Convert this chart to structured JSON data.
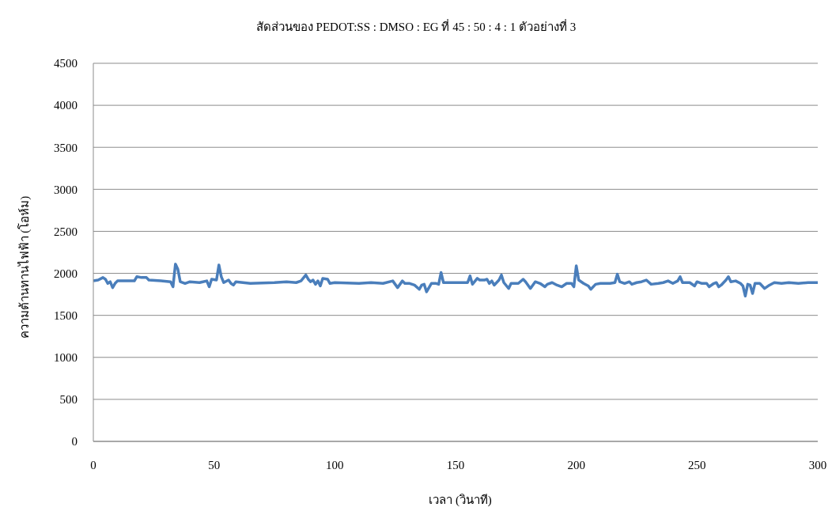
{
  "chart_data": {
    "type": "line",
    "title": "สัดส่วนของ PEDOT:SS : DMSO : EG ที่ 45 : 50 : 4 : 1 ตัวอย่างที่ 3",
    "xlabel": "เวลา (วินาที)",
    "ylabel": "ความต้านทานไฟฟ้า (โอห์ม)",
    "x": [
      0,
      2,
      4,
      5,
      6,
      7,
      8,
      9,
      10,
      14,
      17,
      18,
      20,
      22,
      23,
      28,
      32,
      33,
      34,
      35,
      36,
      38,
      40,
      44,
      47,
      48,
      49,
      51,
      52,
      53,
      54,
      56,
      57,
      58,
      59,
      65,
      75,
      80,
      84,
      86,
      88,
      89,
      90,
      91,
      92,
      93,
      94,
      95,
      97,
      98,
      100,
      110,
      115,
      120,
      124,
      126,
      128,
      129,
      131,
      133,
      135,
      136,
      137,
      138,
      140,
      142,
      143,
      144,
      145,
      150,
      155,
      156,
      157,
      159,
      160,
      162,
      163,
      164,
      165,
      166,
      168,
      169,
      170,
      172,
      173,
      176,
      178,
      179,
      181,
      183,
      185,
      187,
      188,
      190,
      192,
      194,
      196,
      198,
      199,
      200,
      201,
      203,
      205,
      206,
      208,
      210,
      214,
      216,
      217,
      218,
      220,
      222,
      223,
      225,
      227,
      229,
      231,
      234,
      236,
      238,
      240,
      242,
      243,
      244,
      247,
      249,
      250,
      252,
      254,
      255,
      257,
      258,
      259,
      260,
      261,
      262,
      263,
      264,
      266,
      268,
      269,
      270,
      271,
      272,
      273,
      274,
      276,
      277,
      278,
      280,
      282,
      285,
      288,
      292,
      296,
      300
    ],
    "series": [
      {
        "color": "#4a7ebb",
        "values": [
          1910,
          1920,
          1950,
          1930,
          1880,
          1900,
          1830,
          1880,
          1910,
          1910,
          1910,
          1960,
          1950,
          1950,
          1920,
          1910,
          1900,
          1840,
          2110,
          2050,
          1900,
          1880,
          1900,
          1890,
          1910,
          1840,
          1930,
          1920,
          2100,
          1960,
          1890,
          1920,
          1880,
          1860,
          1900,
          1880,
          1890,
          1900,
          1890,
          1910,
          1980,
          1930,
          1900,
          1920,
          1870,
          1910,
          1850,
          1940,
          1930,
          1880,
          1890,
          1880,
          1890,
          1880,
          1910,
          1830,
          1910,
          1880,
          1880,
          1860,
          1810,
          1860,
          1870,
          1780,
          1880,
          1880,
          1870,
          2010,
          1890,
          1890,
          1890,
          1970,
          1870,
          1940,
          1920,
          1920,
          1930,
          1880,
          1910,
          1860,
          1920,
          1980,
          1890,
          1820,
          1880,
          1880,
          1930,
          1900,
          1820,
          1900,
          1880,
          1840,
          1870,
          1890,
          1860,
          1840,
          1880,
          1880,
          1840,
          2090,
          1920,
          1880,
          1850,
          1810,
          1870,
          1880,
          1880,
          1890,
          1990,
          1900,
          1880,
          1900,
          1870,
          1890,
          1900,
          1920,
          1870,
          1880,
          1890,
          1910,
          1880,
          1910,
          1960,
          1890,
          1890,
          1850,
          1900,
          1880,
          1880,
          1840,
          1880,
          1890,
          1840,
          1860,
          1890,
          1920,
          1960,
          1900,
          1910,
          1880,
          1850,
          1730,
          1870,
          1860,
          1760,
          1880,
          1880,
          1850,
          1820,
          1860,
          1890,
          1880,
          1890,
          1880,
          1890,
          1890
        ]
      }
    ],
    "xlim": [
      0,
      300
    ],
    "xticks": [
      0,
      50,
      100,
      150,
      200,
      250,
      300
    ],
    "ylim": [
      0,
      4500
    ],
    "yticks": [
      0,
      500,
      1000,
      1500,
      2000,
      2500,
      3000,
      3500,
      4000,
      4500
    ],
    "grid": "y",
    "legend": false,
    "marker": "none",
    "line_style": "solid"
  }
}
